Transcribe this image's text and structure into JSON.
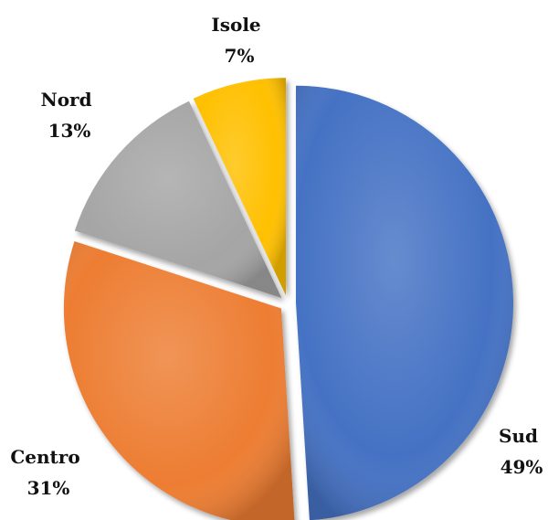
{
  "chart_data": {
    "type": "pie",
    "exploded": true,
    "slices": [
      {
        "label": "Sud",
        "value": 49,
        "display": "49%",
        "color": "#4472C4"
      },
      {
        "label": "Centro",
        "value": 31,
        "display": "31%",
        "color": "#ED7D31"
      },
      {
        "label": "Nord",
        "value": 13,
        "display": "13%",
        "color": "#A5A5A5"
      },
      {
        "label": "Isole",
        "value": 7,
        "display": "7%",
        "color": "#FFC000"
      }
    ]
  }
}
